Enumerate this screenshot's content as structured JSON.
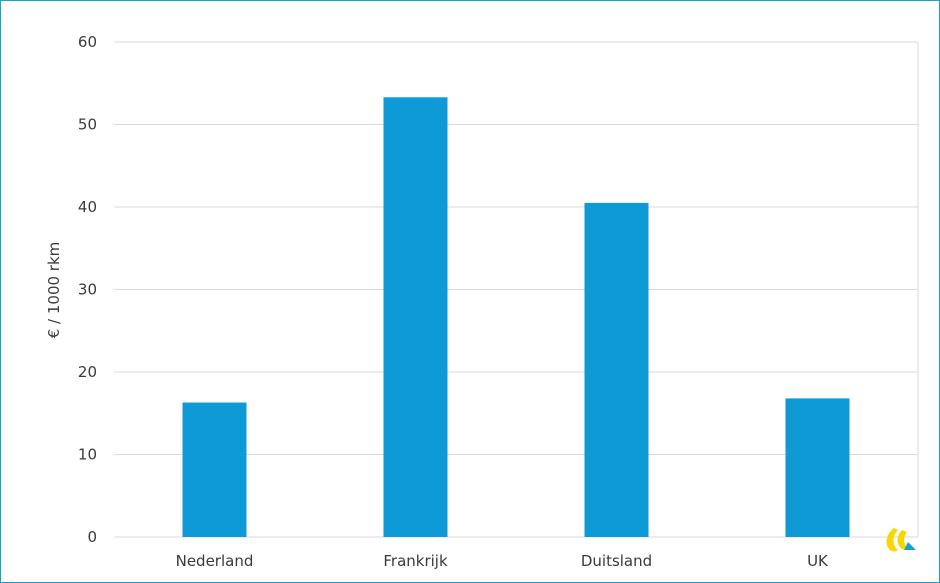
{
  "chart_data": {
    "type": "bar",
    "categories": [
      "Nederland",
      "Frankrijk",
      "Duitsland",
      "UK"
    ],
    "values": [
      16.3,
      53.3,
      40.5,
      16.8
    ],
    "title": "",
    "xlabel": "",
    "ylabel": "€ / 1000 rkm",
    "ylim": [
      0,
      60
    ],
    "yticks": [
      0,
      10,
      20,
      30,
      40,
      50,
      60
    ],
    "grid": true,
    "legend": "none",
    "colors": {
      "bar": "#0e9ad6",
      "grid": "#d9d9d9",
      "frame": "#1aa0cf",
      "text": "#3a3a3a"
    }
  },
  "logo": {
    "name": "logo-icon",
    "colors": [
      "#f5d800",
      "#1aa0cf"
    ]
  }
}
